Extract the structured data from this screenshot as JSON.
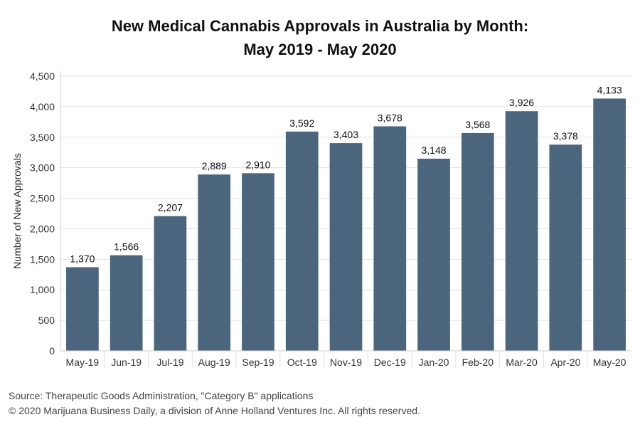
{
  "chart_data": {
    "type": "bar",
    "title_lines": [
      "New Medical Cannabis Approvals in Australia by Month:",
      "May 2019 - May 2020"
    ],
    "xlabel": "",
    "ylabel": "Number of New Approvals",
    "ylim": [
      0,
      4500
    ],
    "yticks": [
      0,
      500,
      1000,
      1500,
      2000,
      2500,
      3000,
      3500,
      4000,
      4500
    ],
    "ytick_labels": [
      "0",
      "500",
      "1,000",
      "1,500",
      "2,000",
      "2,500",
      "3,000",
      "3,500",
      "4,000",
      "4,500"
    ],
    "categories": [
      "May-19",
      "Jun-19",
      "Jul-19",
      "Aug-19",
      "Sep-19",
      "Oct-19",
      "Nov-19",
      "Dec-19",
      "Jan-20",
      "Feb-20",
      "Mar-20",
      "Apr-20",
      "May-20"
    ],
    "values": [
      1370,
      1566,
      2207,
      2889,
      2910,
      3592,
      3403,
      3678,
      3148,
      3568,
      3926,
      3378,
      4133
    ],
    "value_labels": [
      "1,370",
      "1,566",
      "2,207",
      "2,889",
      "2,910",
      "3,592",
      "3,403",
      "3,678",
      "3,148",
      "3,568",
      "3,926",
      "3,378",
      "4,133"
    ],
    "bar_color": "#4a657c",
    "grid": true,
    "legend": "none"
  },
  "footer": {
    "source": "Source: Therapeutic Goods Administration, \"Category B\" applications",
    "copyright": "© 2020 Marijuana Business Daily, a division of Anne Holland Ventures Inc. All rights reserved."
  }
}
